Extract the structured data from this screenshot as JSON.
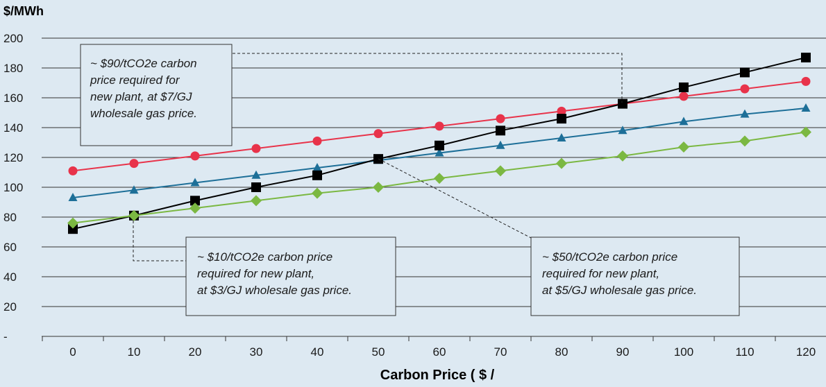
{
  "chart_data": {
    "type": "line",
    "xlabel": "Carbon Price ( $ /",
    "ylabel": "$/MWh",
    "ylim": [
      0,
      200
    ],
    "y_ticks": [
      "-",
      "20",
      "40",
      "60",
      "80",
      "100",
      "120",
      "140",
      "160",
      "180",
      "200"
    ],
    "grid": "horizontal",
    "x": [
      0,
      10,
      20,
      30,
      40,
      50,
      60,
      70,
      80,
      90,
      100,
      110,
      120
    ],
    "series": [
      {
        "color": "#e8334a",
        "marker": "circle",
        "values": [
          111,
          116,
          121,
          126,
          131,
          136,
          141,
          146,
          151,
          156,
          161,
          166,
          171
        ]
      },
      {
        "color": "#1d6f98",
        "marker": "triangle",
        "values": [
          93,
          98,
          103,
          108,
          113,
          118,
          123,
          128,
          133,
          138,
          144,
          149,
          153
        ]
      },
      {
        "color": "#000000",
        "marker": "square",
        "values": [
          72,
          81,
          91,
          100,
          108,
          119,
          128,
          138,
          146,
          156,
          167,
          177,
          187
        ]
      },
      {
        "color": "#7bb842",
        "marker": "diamond",
        "values": [
          76,
          81,
          86,
          91,
          96,
          100,
          106,
          111,
          116,
          121,
          127,
          131,
          137
        ]
      }
    ],
    "annotations": [
      {
        "id": "a90",
        "lines": [
          "~ $90/tCO2e carbon",
          "price required for",
          "new plant, at $7/GJ",
          "wholesale gas price."
        ]
      },
      {
        "id": "a10",
        "lines": [
          "~ $10/tCO2e carbon price",
          "required for new plant,",
          "at $3/GJ wholesale gas price."
        ]
      },
      {
        "id": "a50",
        "lines": [
          "~ $50/tCO2e carbon price",
          "required for new plant,",
          "at $5/GJ wholesale gas price."
        ]
      }
    ]
  }
}
